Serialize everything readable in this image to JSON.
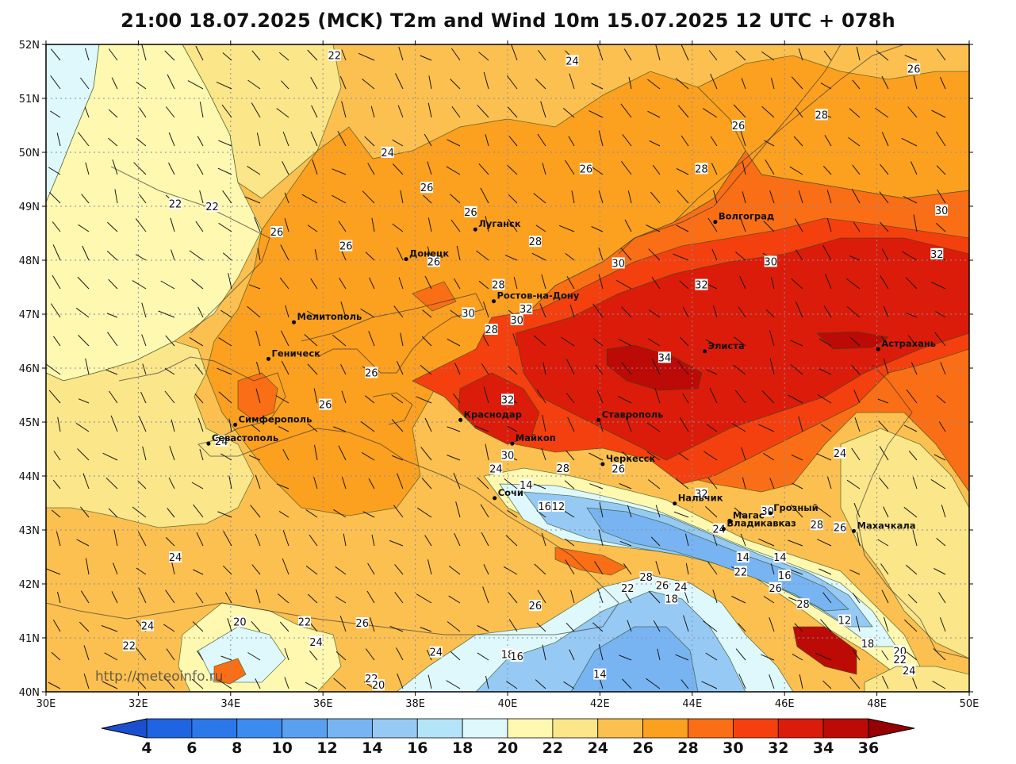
{
  "title": "21:00 18.07.2025 (MCK) T2m and Wind 10m 15.07.2025 12 UTC + 078h",
  "watermark": "http://meteoinfo.ru",
  "extent": {
    "lon": [
      30,
      50
    ],
    "lat": [
      40,
      52
    ]
  },
  "lat_ticks": [
    {
      "value": 40,
      "label": "40N"
    },
    {
      "value": 41,
      "label": "41N"
    },
    {
      "value": 42,
      "label": "42N"
    },
    {
      "value": 43,
      "label": "43N"
    },
    {
      "value": 44,
      "label": "44N"
    },
    {
      "value": 45,
      "label": "45N"
    },
    {
      "value": 46,
      "label": "46N"
    },
    {
      "value": 47,
      "label": "47N"
    },
    {
      "value": 48,
      "label": "48N"
    },
    {
      "value": 49,
      "label": "49N"
    },
    {
      "value": 50,
      "label": "50N"
    },
    {
      "value": 51,
      "label": "51N"
    },
    {
      "value": 52,
      "label": "52N"
    }
  ],
  "lon_ticks": [
    {
      "value": 30,
      "label": "30E"
    },
    {
      "value": 32,
      "label": "32E"
    },
    {
      "value": 34,
      "label": "34E"
    },
    {
      "value": 36,
      "label": "36E"
    },
    {
      "value": 38,
      "label": "38E"
    },
    {
      "value": 40,
      "label": "40E"
    },
    {
      "value": 42,
      "label": "42E"
    },
    {
      "value": 44,
      "label": "44E"
    },
    {
      "value": 46,
      "label": "46E"
    },
    {
      "value": 48,
      "label": "48E"
    },
    {
      "value": 50,
      "label": "50E"
    }
  ],
  "colorbar": {
    "ticks": [
      "4",
      "6",
      "8",
      "10",
      "12",
      "14",
      "16",
      "18",
      "20",
      "22",
      "24",
      "26",
      "28",
      "30",
      "32",
      "34",
      "36"
    ],
    "colors": [
      "#1f64e0",
      "#2b78ea",
      "#3c8cf0",
      "#5aa0f0",
      "#78b4f2",
      "#96caf4",
      "#b4e4f8",
      "#def8fc",
      "#fff8b0",
      "#fce68a",
      "#fcc050",
      "#fca020",
      "#fa6e16",
      "#f4400e",
      "#dc1c0a",
      "#bc0a06"
    ],
    "under_color": "#1a50d0",
    "over_color": "#960000"
  },
  "colors": {
    "temp_22_24": "#fce68a",
    "temp_24_26": "#fcc050",
    "temp_26_28": "#fca020",
    "temp_28_30": "#fa6e16",
    "temp_30_32": "#f4400e",
    "temp_32_34": "#dc1c0a",
    "temp_34_36": "#bc0a06",
    "temp_18_20": "#def8fc",
    "temp_20_22": "#fff8b0",
    "temp_14_16": "#96caf4",
    "temp_12_14": "#78b4f2"
  },
  "cities": [
    {
      "name": "Луганск",
      "lon": 39.3,
      "lat": 48.57
    },
    {
      "name": "Донецк",
      "lon": 37.8,
      "lat": 48.02
    },
    {
      "name": "Ростов-на-Дону",
      "lon": 39.7,
      "lat": 47.24
    },
    {
      "name": "Волгоград",
      "lon": 44.5,
      "lat": 48.71
    },
    {
      "name": "Мелитополь",
      "lon": 35.37,
      "lat": 46.85
    },
    {
      "name": "Геническ",
      "lon": 34.82,
      "lat": 46.17
    },
    {
      "name": "Элиста",
      "lon": 44.27,
      "lat": 46.31
    },
    {
      "name": "Астрахань",
      "lon": 48.03,
      "lat": 46.35
    },
    {
      "name": "Краснодар",
      "lon": 38.98,
      "lat": 45.04
    },
    {
      "name": "Ставрополь",
      "lon": 41.97,
      "lat": 45.04
    },
    {
      "name": "Симферополь",
      "lon": 34.1,
      "lat": 44.95
    },
    {
      "name": "Севастополь",
      "lon": 33.52,
      "lat": 44.6
    },
    {
      "name": "Майкоп",
      "lon": 40.1,
      "lat": 44.6
    },
    {
      "name": "Черкесск",
      "lon": 42.06,
      "lat": 44.22
    },
    {
      "name": "Сочи",
      "lon": 39.72,
      "lat": 43.59
    },
    {
      "name": "Нальчик",
      "lon": 43.62,
      "lat": 43.49
    },
    {
      "name": "Грозный",
      "lon": 45.69,
      "lat": 43.31
    },
    {
      "name": "Магас",
      "lon": 44.81,
      "lat": 43.17
    },
    {
      "name": "Владикавказ",
      "lon": 44.68,
      "lat": 43.02
    },
    {
      "name": "Махачкала",
      "lon": 47.5,
      "lat": 42.98
    }
  ],
  "isotherm_labels": [
    {
      "text": "22",
      "lon": 36.25,
      "lat": 51.8
    },
    {
      "text": "24",
      "lon": 41.4,
      "lat": 51.7
    },
    {
      "text": "26",
      "lon": 48.8,
      "lat": 51.55
    },
    {
      "text": "26",
      "lon": 45.0,
      "lat": 50.5
    },
    {
      "text": "28",
      "lon": 46.8,
      "lat": 50.7
    },
    {
      "text": "24",
      "lon": 37.4,
      "lat": 50.0
    },
    {
      "text": "26",
      "lon": 41.7,
      "lat": 49.7
    },
    {
      "text": "28",
      "lon": 44.2,
      "lat": 49.7
    },
    {
      "text": "26",
      "lon": 38.25,
      "lat": 49.35
    },
    {
      "text": "22",
      "lon": 32.8,
      "lat": 49.05
    },
    {
      "text": "22",
      "lon": 33.6,
      "lat": 49.0
    },
    {
      "text": "26",
      "lon": 39.2,
      "lat": 48.9
    },
    {
      "text": "30",
      "lon": 49.4,
      "lat": 48.93
    },
    {
      "text": "26",
      "lon": 35.0,
      "lat": 48.53
    },
    {
      "text": "28",
      "lon": 40.6,
      "lat": 48.35
    },
    {
      "text": "26",
      "lon": 36.5,
      "lat": 48.27
    },
    {
      "text": "32",
      "lon": 49.3,
      "lat": 48.12
    },
    {
      "text": "26",
      "lon": 38.4,
      "lat": 47.98
    },
    {
      "text": "30",
      "lon": 42.4,
      "lat": 47.95
    },
    {
      "text": "30",
      "lon": 45.7,
      "lat": 47.98
    },
    {
      "text": "28",
      "lon": 39.8,
      "lat": 47.55
    },
    {
      "text": "32",
      "lon": 44.2,
      "lat": 47.55
    },
    {
      "text": "32",
      "lon": 40.4,
      "lat": 47.1
    },
    {
      "text": "30",
      "lon": 39.15,
      "lat": 47.02
    },
    {
      "text": "30",
      "lon": 40.2,
      "lat": 46.9
    },
    {
      "text": "28",
      "lon": 39.65,
      "lat": 46.72
    },
    {
      "text": "34",
      "lon": 43.4,
      "lat": 46.2
    },
    {
      "text": "26",
      "lon": 37.05,
      "lat": 45.92
    },
    {
      "text": "32",
      "lon": 40.0,
      "lat": 45.42
    },
    {
      "text": "26",
      "lon": 36.05,
      "lat": 45.33
    },
    {
      "text": "24",
      "lon": 33.8,
      "lat": 44.65
    },
    {
      "text": "30",
      "lon": 40.0,
      "lat": 44.39
    },
    {
      "text": "24",
      "lon": 47.2,
      "lat": 44.43
    },
    {
      "text": "24",
      "lon": 39.75,
      "lat": 44.14
    },
    {
      "text": "28",
      "lon": 41.2,
      "lat": 44.15
    },
    {
      "text": "26",
      "lon": 42.4,
      "lat": 44.14
    },
    {
      "text": "14",
      "lon": 40.4,
      "lat": 43.84
    },
    {
      "text": "32",
      "lon": 44.2,
      "lat": 43.68
    },
    {
      "text": "16",
      "lon": 40.8,
      "lat": 43.44
    },
    {
      "text": "12",
      "lon": 41.1,
      "lat": 43.44
    },
    {
      "text": "30",
      "lon": 45.63,
      "lat": 43.35
    },
    {
      "text": "28",
      "lon": 46.7,
      "lat": 43.1
    },
    {
      "text": "26",
      "lon": 47.2,
      "lat": 43.05
    },
    {
      "text": "24",
      "lon": 44.58,
      "lat": 43.02
    },
    {
      "text": "24",
      "lon": 32.8,
      "lat": 42.5
    },
    {
      "text": "14",
      "lon": 45.1,
      "lat": 42.5
    },
    {
      "text": "14",
      "lon": 45.9,
      "lat": 42.5
    },
    {
      "text": "22",
      "lon": 45.05,
      "lat": 42.23
    },
    {
      "text": "16",
      "lon": 46.0,
      "lat": 42.16
    },
    {
      "text": "28",
      "lon": 43.0,
      "lat": 42.13
    },
    {
      "text": "26",
      "lon": 43.35,
      "lat": 41.98
    },
    {
      "text": "24",
      "lon": 43.75,
      "lat": 41.95
    },
    {
      "text": "22",
      "lon": 42.6,
      "lat": 41.93
    },
    {
      "text": "26",
      "lon": 45.8,
      "lat": 41.93
    },
    {
      "text": "18",
      "lon": 43.55,
      "lat": 41.73
    },
    {
      "text": "28",
      "lon": 46.4,
      "lat": 41.63
    },
    {
      "text": "26",
      "lon": 40.6,
      "lat": 41.6
    },
    {
      "text": "20",
      "lon": 34.2,
      "lat": 41.3
    },
    {
      "text": "22",
      "lon": 35.6,
      "lat": 41.3
    },
    {
      "text": "26",
      "lon": 36.85,
      "lat": 41.28
    },
    {
      "text": "12",
      "lon": 47.3,
      "lat": 41.33
    },
    {
      "text": "24",
      "lon": 32.2,
      "lat": 41.23
    },
    {
      "text": "24",
      "lon": 35.85,
      "lat": 40.93
    },
    {
      "text": "22",
      "lon": 31.8,
      "lat": 40.86
    },
    {
      "text": "18",
      "lon": 47.8,
      "lat": 40.9
    },
    {
      "text": "20",
      "lon": 48.5,
      "lat": 40.76
    },
    {
      "text": "24",
      "lon": 38.45,
      "lat": 40.74
    },
    {
      "text": "18",
      "lon": 40.0,
      "lat": 40.7
    },
    {
      "text": "16",
      "lon": 40.2,
      "lat": 40.66
    },
    {
      "text": "22",
      "lon": 48.5,
      "lat": 40.6
    },
    {
      "text": "24",
      "lon": 48.7,
      "lat": 40.4
    },
    {
      "text": "14",
      "lon": 42.0,
      "lat": 40.33
    },
    {
      "text": "22",
      "lon": 37.05,
      "lat": 40.25
    },
    {
      "text": "20",
      "lon": 37.2,
      "lat": 40.13
    }
  ]
}
